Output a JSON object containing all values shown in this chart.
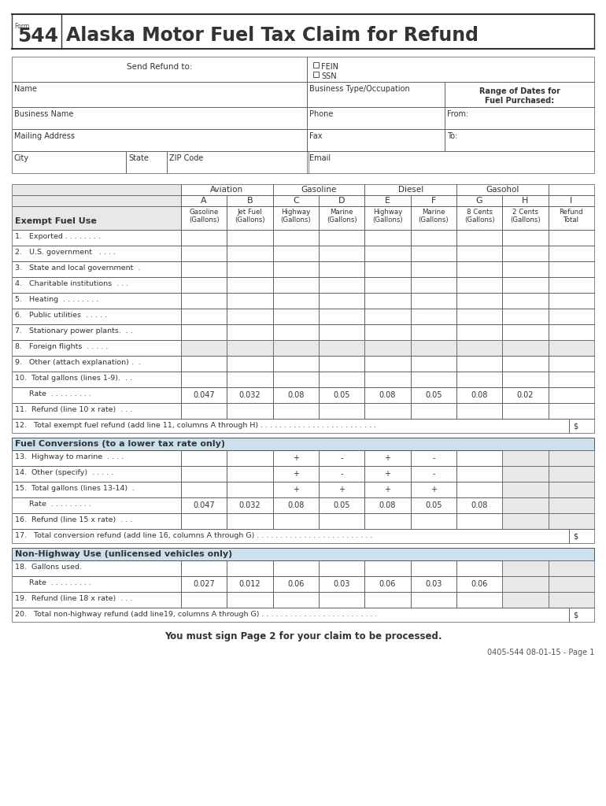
{
  "title_form_small": "Form",
  "title_form_num": "544",
  "title_main": "Alaska Motor Fuel Tax Claim for Refund",
  "bg_color": "#ffffff",
  "light_gray": "#e8e8e8",
  "section_hdr_color": "#cce0ee",
  "border_color": "#555555",
  "text_color": "#333333",
  "exempt_rate_vals": [
    "0.047",
    "0.032",
    "0.08",
    "0.05",
    "0.08",
    "0.05",
    "0.08",
    "0.02"
  ],
  "conv_rate_vals": [
    "0.047",
    "0.032",
    "0.08",
    "0.05",
    "0.08",
    "0.05",
    "0.08"
  ],
  "nh_rate_vals": [
    "0.027",
    "0.012",
    "0.06",
    "0.03",
    "0.06",
    "0.03",
    "0.06"
  ],
  "footer_sign": "You must sign Page 2 for your claim to be processed.",
  "footer_code": "0405-544 08-01-15 - Page 1",
  "row_labels_exempt": [
    "1.   Exported . . . . . . . .",
    "2.   U.S. government   . . . .",
    "3.   State and local government  .",
    "4.   Charitable institutions  . . .",
    "5.   Heating  . . . . . . . .",
    "6.   Public utilities  . . . . .",
    "7.   Stationary power plants.  . .",
    "8.   Foreign flights  . . . . .",
    "9.   Other (attach explanation) .  .",
    "10.  Total gallons (lines 1-9).  . .",
    "      Rate  . . . . . . . . .",
    "11.  Refund (line 10 x rate)  . . ."
  ],
  "conv_row_labels": [
    "13.  Highway to marine  . . . .",
    "14.  Other (specify)  . . . . .",
    "15.  Total gallons (lines 13-14)  .",
    "      Rate  . . . . . . . . .",
    "16.  Refund (line 15 x rate)  . . ."
  ],
  "nh_row_labels": [
    "18.  Gallons used.",
    "      Rate  . . . . . . . . .",
    "19.  Refund (line 18 x rate)  . . ."
  ]
}
